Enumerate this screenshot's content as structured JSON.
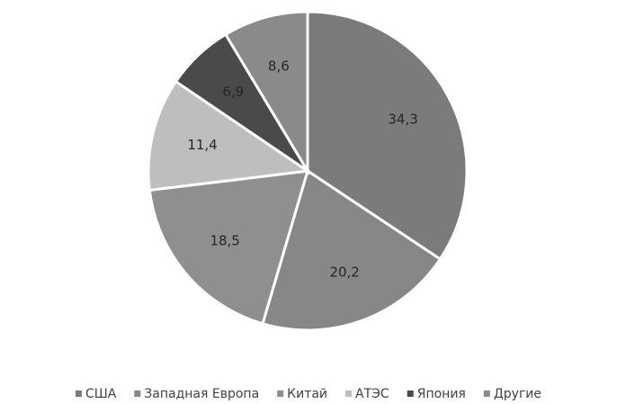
{
  "chart_data": {
    "type": "pie",
    "categories": [
      "США",
      "Западная Европа",
      "Китай",
      "АТЭС",
      "Япония",
      "Другие"
    ],
    "values": [
      34.3,
      20.2,
      18.5,
      11.4,
      6.9,
      8.6
    ],
    "value_labels": [
      "34,3",
      "20,2",
      "18,5",
      "11,4",
      "6,9",
      "8,6"
    ],
    "colors": [
      "#7b7b7b",
      "#878787",
      "#8f8f8f",
      "#bebebe",
      "#4a4a4a",
      "#8a8a8a"
    ],
    "legend": "bottom"
  }
}
